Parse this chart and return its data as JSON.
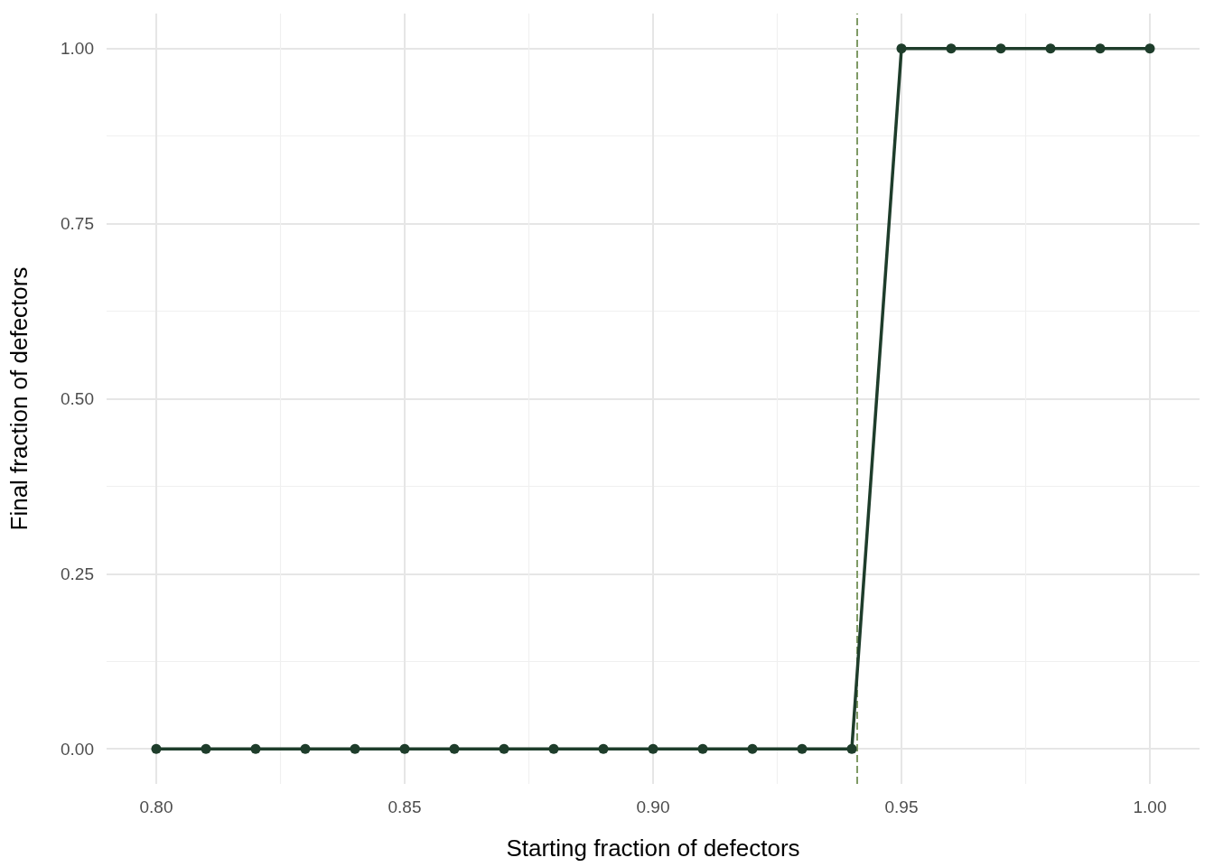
{
  "chart_data": {
    "type": "line",
    "xlabel": "Starting fraction of defectors",
    "ylabel": "Final fraction of defectors",
    "x": [
      0.8,
      0.81,
      0.82,
      0.83,
      0.84,
      0.85,
      0.86,
      0.87,
      0.88,
      0.89,
      0.9,
      0.91,
      0.92,
      0.93,
      0.94,
      0.95,
      0.96,
      0.97,
      0.98,
      0.99,
      1.0
    ],
    "series": [
      {
        "color": "#1e3d2b",
        "values": [
          0,
          0,
          0,
          0,
          0,
          0,
          0,
          0,
          0,
          0,
          0,
          0,
          0,
          0,
          0,
          1,
          1,
          1,
          1,
          1,
          1
        ]
      }
    ],
    "xlim": [
      0.79,
      1.01
    ],
    "xticks": [
      {
        "value": 0.8,
        "label": "0.80"
      },
      0.85,
      {
        "value": 0.9,
        "label": "0.90"
      },
      0.95,
      {
        "value": 1.0,
        "label": "1.00"
      }
    ],
    "ylim": [
      -0.05,
      1.05
    ],
    "yticks": [
      {
        "value": 0,
        "label": "0.00"
      },
      0.25,
      {
        "value": 0.5,
        "label": "0.50"
      },
      0.75,
      {
        "value": 1,
        "label": "1.00"
      }
    ],
    "ref_lines": [
      {
        "axis": "x",
        "value": 0.941,
        "color": "#7f9a65",
        "line_style": "dashed"
      }
    ],
    "grid": true,
    "marker": "circle",
    "line_style": "solid"
  }
}
